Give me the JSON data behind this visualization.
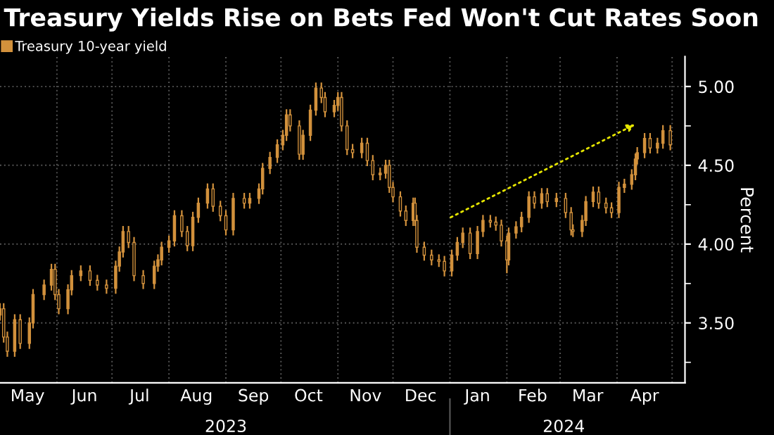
{
  "chart_data": {
    "type": "candlestick",
    "title": "Treasury Yields Rise on Bets Fed Won't Cut Rates Soon",
    "ylabel": "Percent",
    "legend": "top left",
    "grid": true,
    "xlim": [
      "2023-05-01",
      "2024-05-08"
    ],
    "ylim": [
      3.12,
      5.19
    ],
    "yticks": [
      {
        "value": 3.25,
        "label": null
      },
      {
        "value": 3.5,
        "label": "3.50"
      },
      {
        "value": 3.75,
        "label": null
      },
      {
        "value": 4.0,
        "label": "4.00"
      },
      {
        "value": 4.25,
        "label": null
      },
      {
        "value": 4.5,
        "label": "4.50"
      },
      {
        "value": 4.75,
        "label": null
      },
      {
        "value": 5.0,
        "label": "5.00"
      }
    ],
    "xticks": [
      {
        "value": "2023-05-16",
        "label": "May"
      },
      {
        "value": "2023-06-01",
        "label": null
      },
      {
        "value": "2023-06-16",
        "label": "Jun"
      },
      {
        "value": "2023-07-01",
        "label": null
      },
      {
        "value": "2023-07-16",
        "label": "Jul"
      },
      {
        "value": "2023-08-01",
        "label": null
      },
      {
        "value": "2023-08-16",
        "label": "Aug"
      },
      {
        "value": "2023-09-01",
        "label": null
      },
      {
        "value": "2023-09-16",
        "label": "Sep"
      },
      {
        "value": "2023-10-01",
        "label": null
      },
      {
        "value": "2023-10-16",
        "label": "Oct"
      },
      {
        "value": "2023-11-01",
        "label": null
      },
      {
        "value": "2023-11-16",
        "label": "Nov"
      },
      {
        "value": "2023-12-01",
        "label": null
      },
      {
        "value": "2023-12-16",
        "label": "Dec"
      },
      {
        "value": "2024-01-01",
        "label": null
      },
      {
        "value": "2024-01-16",
        "label": "Jan"
      },
      {
        "value": "2024-02-01",
        "label": null
      },
      {
        "value": "2024-02-15",
        "label": "Feb"
      },
      {
        "value": "2024-03-01",
        "label": null
      },
      {
        "value": "2024-03-16",
        "label": "Mar"
      },
      {
        "value": "2024-04-01",
        "label": null
      },
      {
        "value": "2024-04-16",
        "label": "Apr"
      },
      {
        "value": "2024-05-01",
        "label": null
      }
    ],
    "x2lim": [
      "2023-05-01",
      "2024-05-08"
    ],
    "x2ticks": [
      {
        "value": "2023-09-01",
        "label": "2023"
      },
      {
        "value": "2024-01-01",
        "label": null
      },
      {
        "value": "2024-03-03",
        "label": "2024"
      }
    ],
    "series": [
      {
        "name": "Treasury 10-year yield",
        "color": "#d2913c",
        "x": [
          "2023-05-01",
          "2023-05-03",
          "2023-05-05",
          "2023-05-09",
          "2023-05-12",
          "2023-05-17",
          "2023-05-19",
          "2023-05-25",
          "2023-05-29",
          "2023-05-31",
          "2023-06-02",
          "2023-06-07",
          "2023-06-09",
          "2023-06-14",
          "2023-06-19",
          "2023-06-23",
          "2023-06-28",
          "2023-07-03",
          "2023-07-05",
          "2023-07-07",
          "2023-07-10",
          "2023-07-13",
          "2023-07-18",
          "2023-07-24",
          "2023-07-26",
          "2023-07-28",
          "2023-08-01",
          "2023-08-04",
          "2023-08-08",
          "2023-08-11",
          "2023-08-14",
          "2023-08-17",
          "2023-08-22",
          "2023-08-25",
          "2023-08-29",
          "2023-09-01",
          "2023-09-05",
          "2023-09-11",
          "2023-09-14",
          "2023-09-19",
          "2023-09-21",
          "2023-09-25",
          "2023-09-29",
          "2023-10-02",
          "2023-10-04",
          "2023-10-06",
          "2023-10-11",
          "2023-10-13",
          "2023-10-17",
          "2023-10-20",
          "2023-10-23",
          "2023-10-25",
          "2023-10-30",
          "2023-11-01",
          "2023-11-03",
          "2023-11-06",
          "2023-11-09",
          "2023-11-14",
          "2023-11-17",
          "2023-11-20",
          "2023-11-24",
          "2023-11-27",
          "2023-11-29",
          "2023-12-01",
          "2023-12-05",
          "2023-12-08",
          "2023-12-12",
          "2023-12-13",
          "2023-12-14",
          "2023-12-18",
          "2023-12-22",
          "2023-12-26",
          "2023-12-29",
          "2024-01-02",
          "2024-01-05",
          "2024-01-08",
          "2024-01-12",
          "2024-01-16",
          "2024-01-19",
          "2024-01-23",
          "2024-01-26",
          "2024-01-29",
          "2024-02-01",
          "2024-02-02",
          "2024-02-06",
          "2024-02-09",
          "2024-02-13",
          "2024-02-16",
          "2024-02-20",
          "2024-02-23",
          "2024-02-28",
          "2024-03-04",
          "2024-03-07",
          "2024-03-08",
          "2024-03-13",
          "2024-03-15",
          "2024-03-19",
          "2024-03-22",
          "2024-03-26",
          "2024-03-29",
          "2024-04-02",
          "2024-04-05",
          "2024-04-09",
          "2024-04-11",
          "2024-04-12",
          "2024-04-16",
          "2024-04-19",
          "2024-04-23",
          "2024-04-26",
          "2024-04-30"
        ],
        "ohlc": [
          [
            3.55,
            3.62,
            3.52,
            3.59
          ],
          [
            3.59,
            3.62,
            3.38,
            3.41
          ],
          [
            3.41,
            3.44,
            3.29,
            3.32
          ],
          [
            3.32,
            3.55,
            3.29,
            3.52
          ],
          [
            3.52,
            3.55,
            3.34,
            3.37
          ],
          [
            3.37,
            3.53,
            3.34,
            3.5
          ],
          [
            3.5,
            3.71,
            3.47,
            3.68
          ],
          [
            3.68,
            3.77,
            3.65,
            3.74
          ],
          [
            3.74,
            3.87,
            3.71,
            3.84
          ],
          [
            3.84,
            3.87,
            3.65,
            3.68
          ],
          [
            3.68,
            3.71,
            3.56,
            3.59
          ],
          [
            3.59,
            3.74,
            3.56,
            3.71
          ],
          [
            3.71,
            3.83,
            3.68,
            3.8
          ],
          [
            3.8,
            3.86,
            3.77,
            3.83
          ],
          [
            3.83,
            3.86,
            3.74,
            3.77
          ],
          [
            3.77,
            3.8,
            3.71,
            3.74
          ],
          [
            3.74,
            3.77,
            3.69,
            3.72
          ],
          [
            3.72,
            3.89,
            3.69,
            3.86
          ],
          [
            3.86,
            3.98,
            3.83,
            3.95
          ],
          [
            3.95,
            4.11,
            3.92,
            4.08
          ],
          [
            4.08,
            4.11,
            3.98,
            4.01
          ],
          [
            4.01,
            4.04,
            3.77,
            3.8
          ],
          [
            3.8,
            3.83,
            3.72,
            3.75
          ],
          [
            3.75,
            3.89,
            3.72,
            3.86
          ],
          [
            3.86,
            3.93,
            3.83,
            3.9
          ],
          [
            3.9,
            4.01,
            3.87,
            3.98
          ],
          [
            3.98,
            4.05,
            3.95,
            4.02
          ],
          [
            4.02,
            4.21,
            3.99,
            4.18
          ],
          [
            4.18,
            4.21,
            4.05,
            4.08
          ],
          [
            4.08,
            4.11,
            3.96,
            3.99
          ],
          [
            3.99,
            4.2,
            3.96,
            4.17
          ],
          [
            4.17,
            4.29,
            4.14,
            4.26
          ],
          [
            4.26,
            4.38,
            4.23,
            4.35
          ],
          [
            4.35,
            4.38,
            4.21,
            4.24
          ],
          [
            4.24,
            4.27,
            4.15,
            4.18
          ],
          [
            4.18,
            4.21,
            4.06,
            4.09
          ],
          [
            4.09,
            4.32,
            4.06,
            4.29
          ],
          [
            4.29,
            4.32,
            4.23,
            4.26
          ],
          [
            4.26,
            4.32,
            4.23,
            4.29
          ],
          [
            4.29,
            4.38,
            4.26,
            4.35
          ],
          [
            4.35,
            4.51,
            4.32,
            4.48
          ],
          [
            4.48,
            4.58,
            4.45,
            4.55
          ],
          [
            4.55,
            4.66,
            4.52,
            4.63
          ],
          [
            4.63,
            4.72,
            4.6,
            4.69
          ],
          [
            4.69,
            4.85,
            4.66,
            4.82
          ],
          [
            4.82,
            4.85,
            4.72,
            4.75
          ],
          [
            4.75,
            4.78,
            4.54,
            4.57
          ],
          [
            4.57,
            4.72,
            4.54,
            4.69
          ],
          [
            4.69,
            4.88,
            4.66,
            4.85
          ],
          [
            4.85,
            5.02,
            4.82,
            4.99
          ],
          [
            4.99,
            5.02,
            4.9,
            4.93
          ],
          [
            4.93,
            4.96,
            4.81,
            4.84
          ],
          [
            4.84,
            4.91,
            4.81,
            4.88
          ],
          [
            4.88,
            4.96,
            4.85,
            4.93
          ],
          [
            4.93,
            4.96,
            4.72,
            4.75
          ],
          [
            4.75,
            4.78,
            4.57,
            4.6
          ],
          [
            4.6,
            4.63,
            4.55,
            4.58
          ],
          [
            4.58,
            4.67,
            4.55,
            4.64
          ],
          [
            4.64,
            4.67,
            4.5,
            4.53
          ],
          [
            4.53,
            4.56,
            4.41,
            4.44
          ],
          [
            4.44,
            4.48,
            4.41,
            4.45
          ],
          [
            4.45,
            4.53,
            4.42,
            4.5
          ],
          [
            4.5,
            4.53,
            4.33,
            4.36
          ],
          [
            4.36,
            4.39,
            4.27,
            4.3
          ],
          [
            4.3,
            4.33,
            4.18,
            4.21
          ],
          [
            4.21,
            4.24,
            4.12,
            4.15
          ],
          [
            4.15,
            4.29,
            4.12,
            4.26
          ],
          [
            4.26,
            4.29,
            4.12,
            4.15
          ],
          [
            4.15,
            4.18,
            3.95,
            3.98
          ],
          [
            3.98,
            4.01,
            3.9,
            3.93
          ],
          [
            3.93,
            3.96,
            3.87,
            3.9
          ],
          [
            3.9,
            3.93,
            3.86,
            3.89
          ],
          [
            3.89,
            3.92,
            3.8,
            3.83
          ],
          [
            3.83,
            3.96,
            3.8,
            3.93
          ],
          [
            3.93,
            4.04,
            3.9,
            4.01
          ],
          [
            4.01,
            4.1,
            3.98,
            4.07
          ],
          [
            4.07,
            4.1,
            3.91,
            3.94
          ],
          [
            3.94,
            4.11,
            3.91,
            4.08
          ],
          [
            4.08,
            4.18,
            4.05,
            4.15
          ],
          [
            4.15,
            4.18,
            4.11,
            4.14
          ],
          [
            4.14,
            4.17,
            4.09,
            4.12
          ],
          [
            4.12,
            4.15,
            3.99,
            4.02
          ],
          [
            4.02,
            4.05,
            3.82,
            3.9
          ],
          [
            3.9,
            4.1,
            3.87,
            4.07
          ],
          [
            4.07,
            4.14,
            4.04,
            4.11
          ],
          [
            4.11,
            4.2,
            4.08,
            4.17
          ],
          [
            4.17,
            4.33,
            4.14,
            4.3
          ],
          [
            4.3,
            4.33,
            4.23,
            4.26
          ],
          [
            4.26,
            4.35,
            4.23,
            4.32
          ],
          [
            4.32,
            4.35,
            4.24,
            4.27
          ],
          [
            4.27,
            4.32,
            4.24,
            4.29
          ],
          [
            4.29,
            4.32,
            4.17,
            4.2
          ],
          [
            4.2,
            4.23,
            4.06,
            4.09
          ],
          [
            4.09,
            4.12,
            4.05,
            4.08
          ],
          [
            4.08,
            4.18,
            4.05,
            4.15
          ],
          [
            4.15,
            4.3,
            4.12,
            4.27
          ],
          [
            4.27,
            4.36,
            4.24,
            4.33
          ],
          [
            4.33,
            4.36,
            4.23,
            4.26
          ],
          [
            4.26,
            4.29,
            4.2,
            4.23
          ],
          [
            4.23,
            4.26,
            4.17,
            4.2
          ],
          [
            4.2,
            4.39,
            4.17,
            4.36
          ],
          [
            4.36,
            4.41,
            4.33,
            4.38
          ],
          [
            4.38,
            4.47,
            4.35,
            4.44
          ],
          [
            4.44,
            4.57,
            4.41,
            4.54
          ],
          [
            4.54,
            4.61,
            4.51,
            4.58
          ],
          [
            4.58,
            4.7,
            4.55,
            4.67
          ],
          [
            4.67,
            4.7,
            4.58,
            4.61
          ],
          [
            4.61,
            4.67,
            4.58,
            4.64
          ],
          [
            4.64,
            4.75,
            4.61,
            4.72
          ],
          [
            4.72,
            4.75,
            4.6,
            4.63
          ]
        ]
      }
    ]
  }
}
